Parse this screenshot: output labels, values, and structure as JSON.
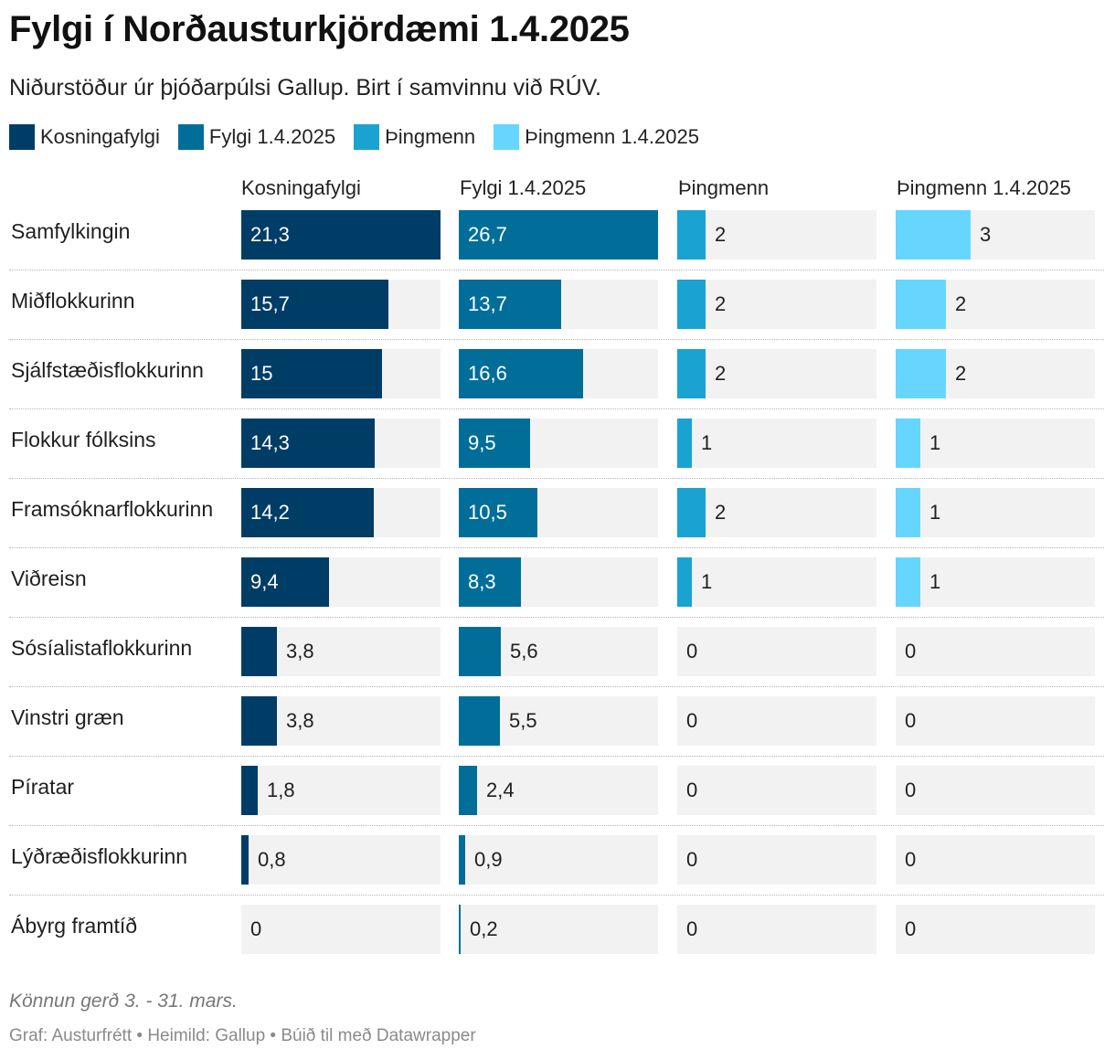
{
  "title": "Fylgi í Norðausturkjördæmi 1.4.2025",
  "subtitle": "Niðurstöður úr þjóðarpúlsi Gallup. Birt í samvinnu við RÚV.",
  "note": "Könnun gerð 3. - 31. mars.",
  "footer": "Graf: Austurfrétt • Heimild: Gallup • Búið til með Datawrapper",
  "colors": {
    "kosningafylgi": "#003d66",
    "fylgi": "#006e99",
    "thingmenn": "#1aa3d1",
    "thingmenn_new": "#66d6ff",
    "cell_background": "#f2f2f2"
  },
  "chart_data": {
    "type": "bar",
    "layout": "table-bars",
    "legend_position": "top-left",
    "series": [
      {
        "name": "Kosningafylgi",
        "max": 21.3,
        "values": [
          "21,3",
          "15,7",
          "15",
          "14,3",
          "14,2",
          "9,4",
          "3,8",
          "3,8",
          "1,8",
          "0,8",
          "0"
        ]
      },
      {
        "name": "Fylgi 1.4.2025",
        "max": 26.7,
        "values": [
          "26,7",
          "13,7",
          "16,6",
          "9,5",
          "10,5",
          "8,3",
          "5,6",
          "5,5",
          "2,4",
          "0,9",
          "0,2"
        ]
      },
      {
        "name": "Þingmenn",
        "max": 14,
        "values": [
          "2",
          "2",
          "2",
          "1",
          "2",
          "1",
          "0",
          "0",
          "0",
          "0",
          "0"
        ]
      },
      {
        "name": "Þingmenn 1.4.2025",
        "max": 8,
        "values": [
          "3",
          "2",
          "2",
          "1",
          "1",
          "1",
          "0",
          "0",
          "0",
          "0",
          "0"
        ]
      }
    ],
    "categories": [
      "Samfylkingin",
      "Miðflokkurinn",
      "Sjálfstæðisflokkurinn",
      "Flokkur fólksins",
      "Framsóknarflokkurinn",
      "Viðreisn",
      "Sósíalistaflokkurinn",
      "Vinstri græn",
      "Píratar",
      "Lýðræðisflokkurinn",
      "Ábyrg framtíð"
    ]
  }
}
